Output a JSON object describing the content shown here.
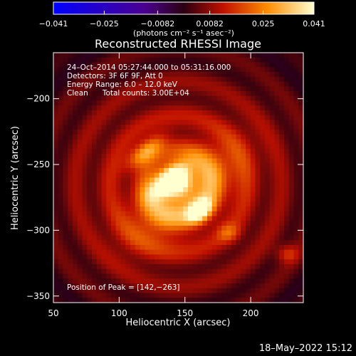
{
  "chart_data": {
    "type": "heatmap",
    "title": "Reconstructed RHESSI Image",
    "xlabel": "Heliocentric X (arcsec)",
    "ylabel": "Heliocentric Y (arcsec)",
    "xlim": [
      50,
      240
    ],
    "ylim": [
      -355,
      -165
    ],
    "x_ticks": [
      {
        "value": 50,
        "label": "50"
      },
      {
        "value": 100,
        "label": "100"
      },
      {
        "value": 150,
        "label": "150"
      },
      {
        "value": 200,
        "label": "200"
      }
    ],
    "y_ticks": [
      {
        "value": -200,
        "label": "−200"
      },
      {
        "value": -250,
        "label": "−250"
      },
      {
        "value": -300,
        "label": "−300"
      },
      {
        "value": -350,
        "label": "−350"
      }
    ],
    "colorbar": {
      "range": [
        -0.041,
        0.041
      ],
      "units_label": "(photons cm⁻² s⁻¹ asec⁻²)",
      "ticks": [
        {
          "value": -0.041,
          "label": "−0.041"
        },
        {
          "value": -0.025,
          "label": "−0.025"
        },
        {
          "value": -0.0082,
          "label": "−0.0082"
        },
        {
          "value": 0.0082,
          "label": "0.0082"
        },
        {
          "value": 0.025,
          "label": "0.025"
        },
        {
          "value": 0.041,
          "label": "0.041"
        }
      ]
    },
    "annotations": [
      "24–Oct–2014 05:27:44.000 to 05:31:16.000",
      "Detectors: 3F 6F 9F, Att 0",
      "Energy Range: 6.0 – 12.0 keV",
      "Clean      Total counts: 3.00E+04"
    ],
    "peak_label": "Position of Peak = [142,−263]",
    "peak_position": [
      142,
      -263
    ],
    "sources": [
      {
        "x": 138,
        "y": -262,
        "sx": 12,
        "sy": 6,
        "angle": -40,
        "amp": 0.041
      },
      {
        "x": 161,
        "y": -285,
        "sx": 7,
        "sy": 5,
        "angle": -40,
        "amp": 0.03
      },
      {
        "x": 120,
        "y": -240,
        "sx": 12,
        "sy": 5,
        "angle": -40,
        "amp": 0.022
      },
      {
        "x": 150,
        "y": -273,
        "sx": 34,
        "sy": 16,
        "angle": -40,
        "amp": 0.022
      },
      {
        "x": 145,
        "y": -265,
        "sx": 95,
        "sy": 85,
        "angle": 0,
        "amp": 0.018
      },
      {
        "x": 228,
        "y": -318,
        "sx": 6,
        "sy": 5,
        "angle": 0,
        "amp": 0.012
      },
      {
        "x": 183,
        "y": -302,
        "sx": 6,
        "sy": 5,
        "angle": 0,
        "amp": 0.01
      }
    ],
    "background_level": -0.006,
    "ripple_amplitude": 0.006
  },
  "footer": {
    "date": "18–May–2022 15:12"
  }
}
